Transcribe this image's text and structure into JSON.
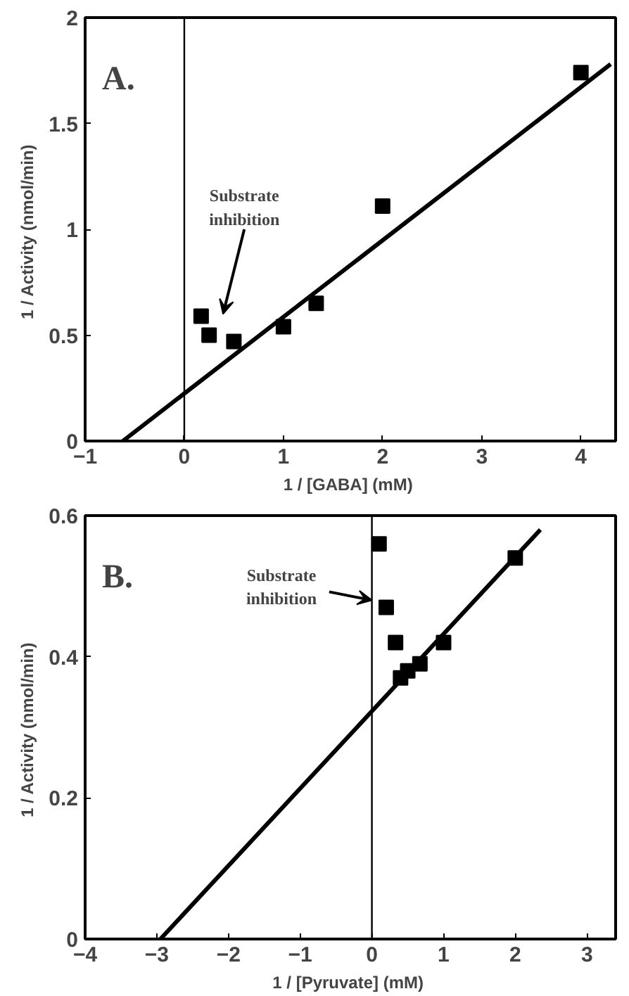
{
  "chart_data": [
    {
      "type": "scatter",
      "title": "A.",
      "xlabel": "1 / [GABA]  (mM)",
      "ylabel": "1 / Activity  (nmol/min)",
      "xlim": [
        -1,
        4.35
      ],
      "ylim": [
        0,
        2
      ],
      "xticks": [
        -1,
        0,
        1,
        2,
        3,
        4
      ],
      "yticks": [
        0,
        0.5,
        1,
        1.5,
        2
      ],
      "grid": false,
      "series": [
        {
          "marker": "square",
          "color": "#000000",
          "x": [
            0.17,
            0.25,
            0.5,
            1,
            1.33,
            2,
            4
          ],
          "values": [
            0.59,
            0.5,
            0.47,
            0.54,
            0.65,
            1.11,
            1.74
          ]
        },
        {
          "type": "line",
          "color": "#000000",
          "x": [
            -0.62,
            4.3
          ],
          "values": [
            0,
            1.78
          ]
        }
      ],
      "ref_lines": [
        {
          "axis": "x",
          "value": 0,
          "label": null,
          "color": "#000000"
        }
      ],
      "annotations": [
        "Substrate inhibition"
      ]
    },
    {
      "type": "scatter",
      "title": "B.",
      "xlabel": "1 / [Pyruvate]  (mM)",
      "ylabel": "1 / Activity  (nmol/min)",
      "xlim": [
        -4,
        3.4
      ],
      "ylim": [
        0,
        0.6
      ],
      "xticks": [
        -4,
        -3,
        -2,
        -1,
        0,
        1,
        2,
        3
      ],
      "yticks": [
        0,
        0.2,
        0.4,
        0.6
      ],
      "grid": false,
      "series": [
        {
          "marker": "square",
          "color": "#000000",
          "x": [
            0.1,
            0.2,
            0.33,
            0.4,
            0.5,
            0.67,
            1,
            2
          ],
          "values": [
            0.56,
            0.47,
            0.42,
            0.37,
            0.38,
            0.39,
            0.42,
            0.54
          ]
        },
        {
          "type": "line",
          "color": "#000000",
          "x": [
            -2.95,
            2.35
          ],
          "values": [
            0,
            0.58
          ]
        }
      ],
      "ref_lines": [
        {
          "axis": "x",
          "value": 0,
          "label": null,
          "color": "#000000"
        }
      ],
      "annotations": [
        {
          "text": "Substrate inhibition",
          "x": 0,
          "y": 0.48
        }
      ]
    }
  ]
}
